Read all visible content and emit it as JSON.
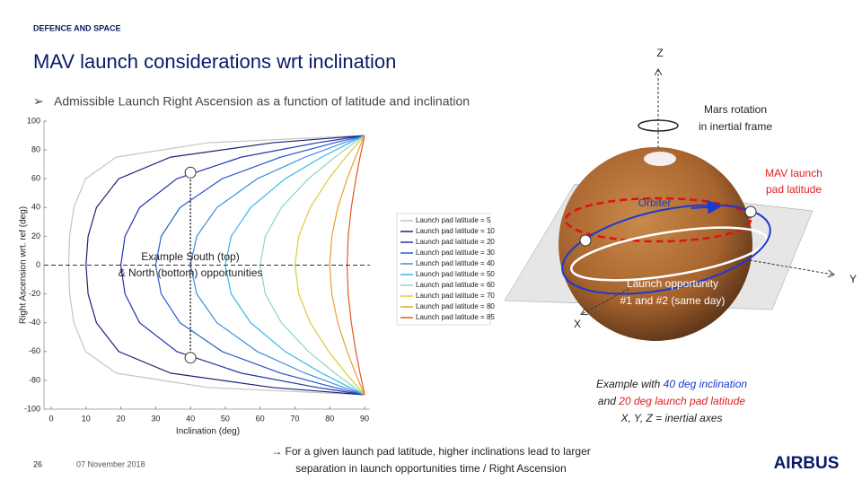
{
  "header": {
    "division": "DEFENCE AND SPACE",
    "title": "MAV launch considerations wrt inclination",
    "bullet": "Admissible Launch Right Ascension as a function of latitude and inclination"
  },
  "chart_data": {
    "type": "line",
    "xlabel": "Inclination (deg)",
    "ylabel": "Right Ascension wrt. ref (deg)",
    "xlim": [
      0,
      90
    ],
    "ylim": [
      -100,
      100
    ],
    "xticks": [
      0,
      10,
      20,
      30,
      40,
      50,
      60,
      70,
      80,
      90
    ],
    "yticks": [
      -100,
      -80,
      -60,
      -40,
      -20,
      0,
      20,
      40,
      60,
      80,
      100
    ],
    "hline": 0,
    "legend_position": "center right",
    "annotation": [
      "Example South (top)",
      "& North (bottom) opportunities"
    ],
    "markers": {
      "x": [
        40,
        40
      ],
      "y": [
        64.3,
        -64.3
      ]
    },
    "series": [
      {
        "name": "Launch pad latitude = 5",
        "color": "#c4c4c4",
        "x": [
          90,
          45.1,
          18.7,
          9.9,
          6.5,
          5.3,
          5,
          5.3,
          6.5,
          9.9,
          18.7,
          45.1,
          90
        ],
        "values": [
          -90,
          -85,
          -75,
          -60,
          -40,
          -20,
          0,
          20,
          40,
          60,
          75,
          85,
          90
        ]
      },
      {
        "name": "Launch pad latitude = 10",
        "color": "#1a237a",
        "x": [
          90,
          63.7,
          34.3,
          19.4,
          13,
          10.6,
          10,
          10.6,
          13,
          19.4,
          34.3,
          63.7,
          90
        ],
        "values": [
          -90,
          -85,
          -75,
          -60,
          -40,
          -20,
          0,
          20,
          40,
          60,
          75,
          85,
          90
        ]
      },
      {
        "name": "Launch pad latitude = 20",
        "color": "#2233aa",
        "x": [
          90,
          76.5,
          54.6,
          36.1,
          25.4,
          21.2,
          20,
          21.2,
          25.4,
          36.1,
          54.6,
          76.5,
          90
        ],
        "values": [
          -90,
          -85,
          -75,
          -60,
          -40,
          -20,
          0,
          20,
          40,
          60,
          75,
          85,
          90
        ]
      },
      {
        "name": "Launch pad latitude = 30",
        "color": "#2a5ccc",
        "x": [
          90,
          81.4,
          65.9,
          49.1,
          37,
          31.6,
          30,
          31.6,
          37,
          49.1,
          65.9,
          81.4,
          90
        ],
        "values": [
          -90,
          -85,
          -75,
          -60,
          -40,
          -20,
          0,
          20,
          40,
          60,
          75,
          85,
          90
        ]
      },
      {
        "name": "Launch pad latitude = 40",
        "color": "#3a8ee0",
        "x": [
          90,
          84.1,
          72.9,
          59.2,
          47.6,
          41.8,
          40,
          41.8,
          47.6,
          59.2,
          72.9,
          84.1,
          90
        ],
        "values": [
          -90,
          -85,
          -75,
          -60,
          -40,
          -20,
          0,
          20,
          40,
          60,
          75,
          85,
          90
        ]
      },
      {
        "name": "Launch pad latitude = 50",
        "color": "#33b8e8",
        "x": [
          90,
          85.8,
          77.7,
          67.2,
          57.3,
          51.7,
          50,
          51.7,
          57.3,
          67.2,
          77.7,
          85.8,
          90
        ],
        "values": [
          -90,
          -85,
          -75,
          -60,
          -40,
          -20,
          0,
          20,
          40,
          60,
          75,
          85,
          90
        ]
      },
      {
        "name": "Launch pad latitude = 60",
        "color": "#8fd4c0",
        "x": [
          90,
          87.1,
          81.5,
          73.9,
          66.1,
          61.5,
          60,
          61.5,
          66.1,
          73.9,
          81.5,
          87.1,
          90
        ],
        "values": [
          -90,
          -85,
          -75,
          -60,
          -40,
          -20,
          0,
          20,
          40,
          60,
          75,
          85,
          90
        ]
      },
      {
        "name": "Launch pad latitude = 70",
        "color": "#d8cc3c",
        "x": [
          90,
          88.2,
          84.6,
          79.7,
          74.4,
          71.1,
          70,
          71.1,
          74.4,
          79.7,
          84.6,
          88.2,
          90
        ],
        "values": [
          -90,
          -85,
          -75,
          -60,
          -40,
          -20,
          0,
          20,
          40,
          60,
          75,
          85,
          90
        ]
      },
      {
        "name": "Launch pad latitude = 80",
        "color": "#e8a030",
        "x": [
          90,
          89.1,
          87.4,
          85,
          82.3,
          80.6,
          80,
          80.6,
          82.3,
          85,
          87.4,
          89.1,
          90
        ],
        "values": [
          -90,
          -85,
          -75,
          -60,
          -40,
          -20,
          0,
          20,
          40,
          60,
          75,
          85,
          90
        ]
      },
      {
        "name": "Launch pad latitude = 85",
        "color": "#e05a20",
        "x": [
          90,
          89.6,
          88.7,
          87.5,
          86.2,
          85.3,
          85,
          85.3,
          86.2,
          87.5,
          88.7,
          89.6,
          90
        ],
        "values": [
          -90,
          -85,
          -75,
          -60,
          -40,
          -20,
          0,
          20,
          40,
          60,
          75,
          85,
          90
        ]
      }
    ]
  },
  "diagram": {
    "z": "Z",
    "y": "Y",
    "x": "X",
    "rotation": [
      "Mars rotation",
      "in inertial frame"
    ],
    "launch_pad": [
      "MAV launch",
      "pad latitude"
    ],
    "orbiter": "Orbiter",
    "opportunity": [
      "Launch opportunity",
      "#1 and #2 (same day)"
    ],
    "caption": [
      [
        "Example with ",
        "40 deg inclination"
      ],
      [
        "and ",
        "20 deg launch pad latitude"
      ],
      [
        "X, Y, Z = inertial axes"
      ]
    ]
  },
  "footer": {
    "page": "26",
    "date": "07 November 2018",
    "note": [
      "→ For a given launch pad latitude, higher inclinations lead to larger",
      "separation in launch opportunities time / Right Ascension"
    ],
    "logo": "AIRBUS"
  }
}
